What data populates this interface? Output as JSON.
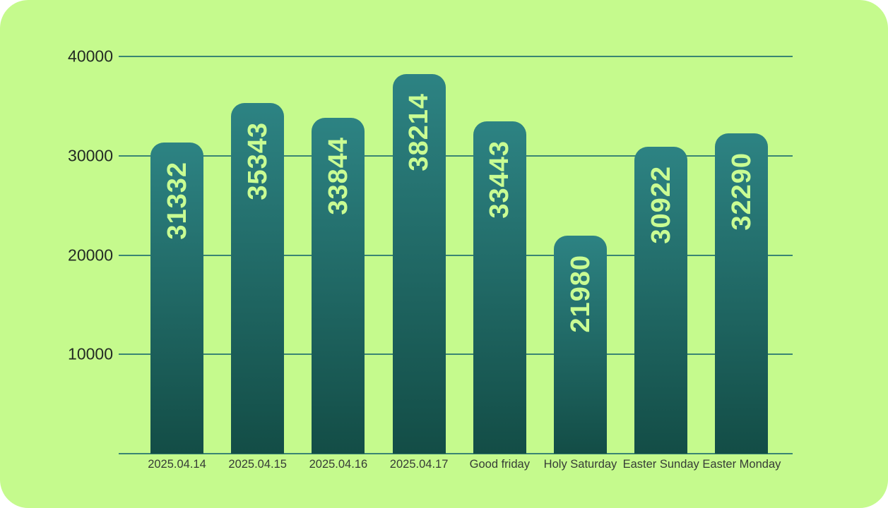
{
  "card": {
    "outside_background": "#ffffff",
    "background": "#c5fa8d"
  },
  "chart_data": {
    "type": "bar",
    "title": "",
    "xlabel": "",
    "ylabel": "",
    "categories": [
      "2025.04.14",
      "2025.04.15",
      "2025.04.16",
      "2025.04.17",
      "Good friday",
      "Holy Saturday",
      "Easter Sunday",
      "Easter Monday"
    ],
    "values": [
      31332,
      35343,
      33844,
      38214,
      33443,
      21980,
      30922,
      32290
    ],
    "ylim": [
      0,
      40000
    ],
    "yticks": [
      40000,
      30000,
      20000,
      10000
    ],
    "grid": "horizontal gridlines at each y tick plus baseline",
    "legend_position": "none",
    "value_labels": "inside bars, rotated 90 degrees counterclockwise, near bar top",
    "colors": {
      "background": "#c5fa8d",
      "bar_gradient_top": "#2d8383",
      "bar_gradient_bottom": "#134d46",
      "value_label_text": "#c9fc93",
      "gridline": "#3a8573",
      "y_tick_text": "#232b24",
      "x_tick_text": "#363c36"
    }
  }
}
